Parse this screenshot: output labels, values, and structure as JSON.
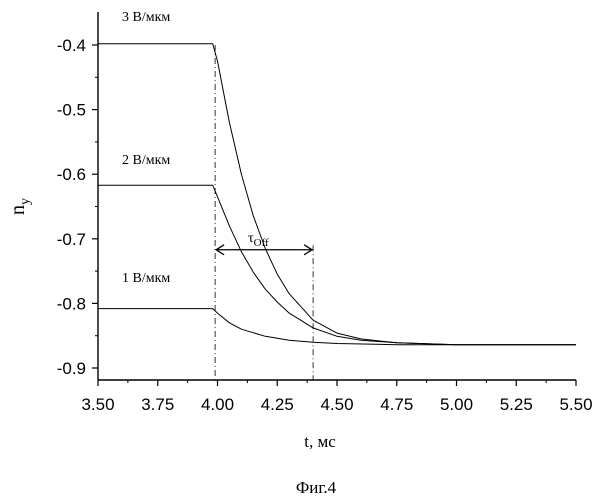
{
  "chart_data": {
    "type": "line",
    "xlabel": "t, мс",
    "ylabel_main": "n",
    "ylabel_sub": "y",
    "xlim": [
      3.5,
      5.5
    ],
    "ylim": [
      -0.93,
      -0.33
    ],
    "x_ticks": [
      3.5,
      3.75,
      4.0,
      4.25,
      4.5,
      4.75,
      5.0,
      5.25,
      5.5
    ],
    "x_tick_labels": [
      "3.50",
      "3.75",
      "4.00",
      "4.25",
      "4.50",
      "4.75",
      "5.00",
      "5.25",
      "5.50"
    ],
    "y_ticks": [
      -0.4,
      -0.5,
      -0.6,
      -0.7,
      -0.8,
      -0.9
    ],
    "y_tick_labels": [
      "-0.4",
      "-0.5",
      "-0.6",
      "-0.7",
      "-0.8",
      "-0.9"
    ],
    "grid": false,
    "series": [
      {
        "name": "3 В/мкм",
        "x": [
          3.5,
          3.98,
          4.0,
          4.05,
          4.1,
          4.15,
          4.2,
          4.25,
          4.3,
          4.4,
          4.5,
          4.6,
          4.75,
          5.0,
          5.25,
          5.5
        ],
        "y": [
          -0.398,
          -0.398,
          -0.425,
          -0.52,
          -0.6,
          -0.665,
          -0.715,
          -0.755,
          -0.785,
          -0.826,
          -0.846,
          -0.855,
          -0.861,
          -0.864,
          -0.864,
          -0.864
        ]
      },
      {
        "name": "2 В/мкм",
        "x": [
          3.5,
          3.98,
          4.0,
          4.05,
          4.1,
          4.15,
          4.2,
          4.25,
          4.3,
          4.4,
          4.5,
          4.6,
          4.75,
          5.0,
          5.25,
          5.5
        ],
        "y": [
          -0.617,
          -0.617,
          -0.635,
          -0.68,
          -0.72,
          -0.752,
          -0.778,
          -0.798,
          -0.815,
          -0.838,
          -0.851,
          -0.857,
          -0.861,
          -0.864,
          -0.864,
          -0.864
        ]
      },
      {
        "name": "1 В/мкм",
        "x": [
          3.5,
          3.98,
          4.0,
          4.05,
          4.1,
          4.2,
          4.3,
          4.4,
          4.5,
          4.75,
          5.0,
          5.25,
          5.5
        ],
        "y": [
          -0.808,
          -0.808,
          -0.815,
          -0.83,
          -0.84,
          -0.851,
          -0.857,
          -0.86,
          -0.862,
          -0.864,
          -0.864,
          -0.864,
          -0.864
        ]
      }
    ],
    "annotations": {
      "tau_main": "τ",
      "tau_sub": "Off",
      "tau_start_x": 3.99,
      "tau_end_x": 4.4,
      "tau_arrow_y": -0.717
    },
    "caption": "Фиг.4"
  }
}
